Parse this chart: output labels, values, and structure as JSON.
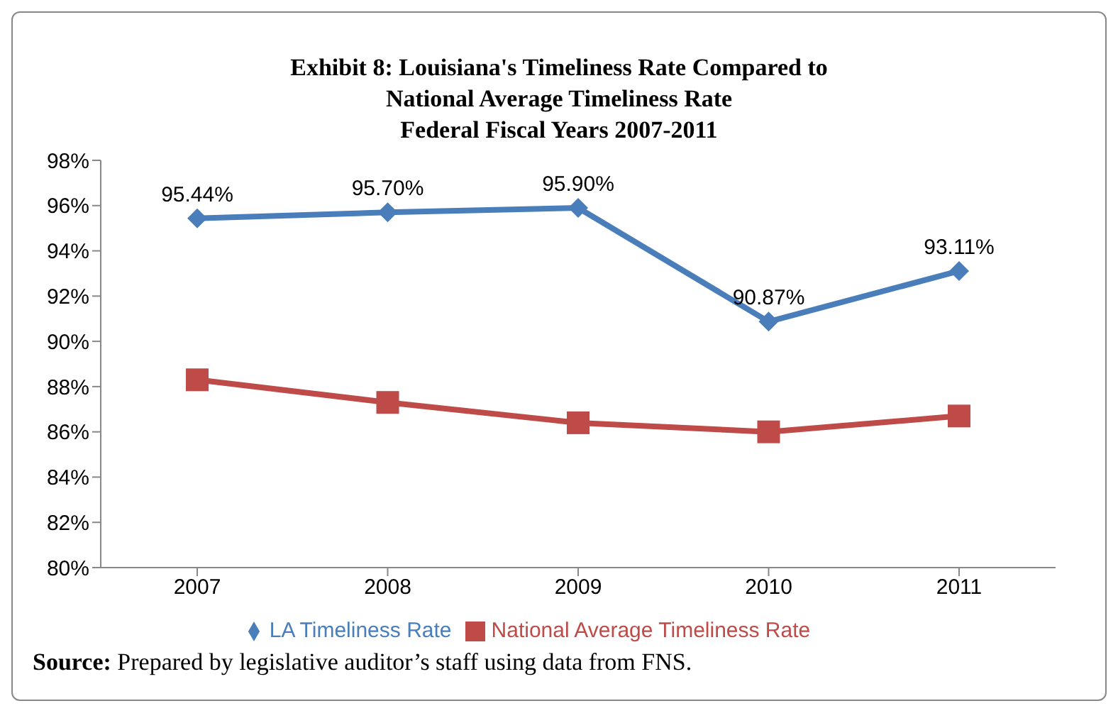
{
  "chart_data": {
    "type": "line",
    "title": "Exhibit 8:  Louisiana's Timeliness Rate Compared to\nNational Average Timeliness Rate\nFederal Fiscal Years 2007-2011",
    "categories": [
      "2007",
      "2008",
      "2009",
      "2010",
      "2011"
    ],
    "series": [
      {
        "name": "LA Timeliness Rate",
        "color": "#4a7ebb",
        "marker": "diamond",
        "values": [
          95.44,
          95.7,
          95.9,
          90.87,
          93.11
        ],
        "value_labels": [
          "95.44%",
          "95.70%",
          "95.90%",
          "90.87%",
          "93.11%"
        ]
      },
      {
        "name": "National Average Timeliness Rate",
        "color": "#be4b48",
        "marker": "square",
        "values": [
          88.3,
          87.3,
          86.4,
          86.0,
          86.7
        ]
      }
    ],
    "ylim": [
      80,
      98
    ],
    "yticks": [
      {
        "value": 80,
        "label": "80%"
      },
      {
        "value": 82,
        "label": "82%"
      },
      {
        "value": 84,
        "label": "84%"
      },
      {
        "value": 86,
        "label": "86%"
      },
      {
        "value": 88,
        "label": "88%"
      },
      {
        "value": 90,
        "label": "90%"
      },
      {
        "value": 92,
        "label": "92%"
      },
      {
        "value": 94,
        "label": "94%"
      },
      {
        "value": 96,
        "label": "96%"
      },
      {
        "value": 98,
        "label": "98%"
      }
    ],
    "legend": "bottom",
    "line_style": "solid",
    "annotations": [
      "Source:  Prepared by legislative auditor’s staff using data from FNS."
    ]
  }
}
